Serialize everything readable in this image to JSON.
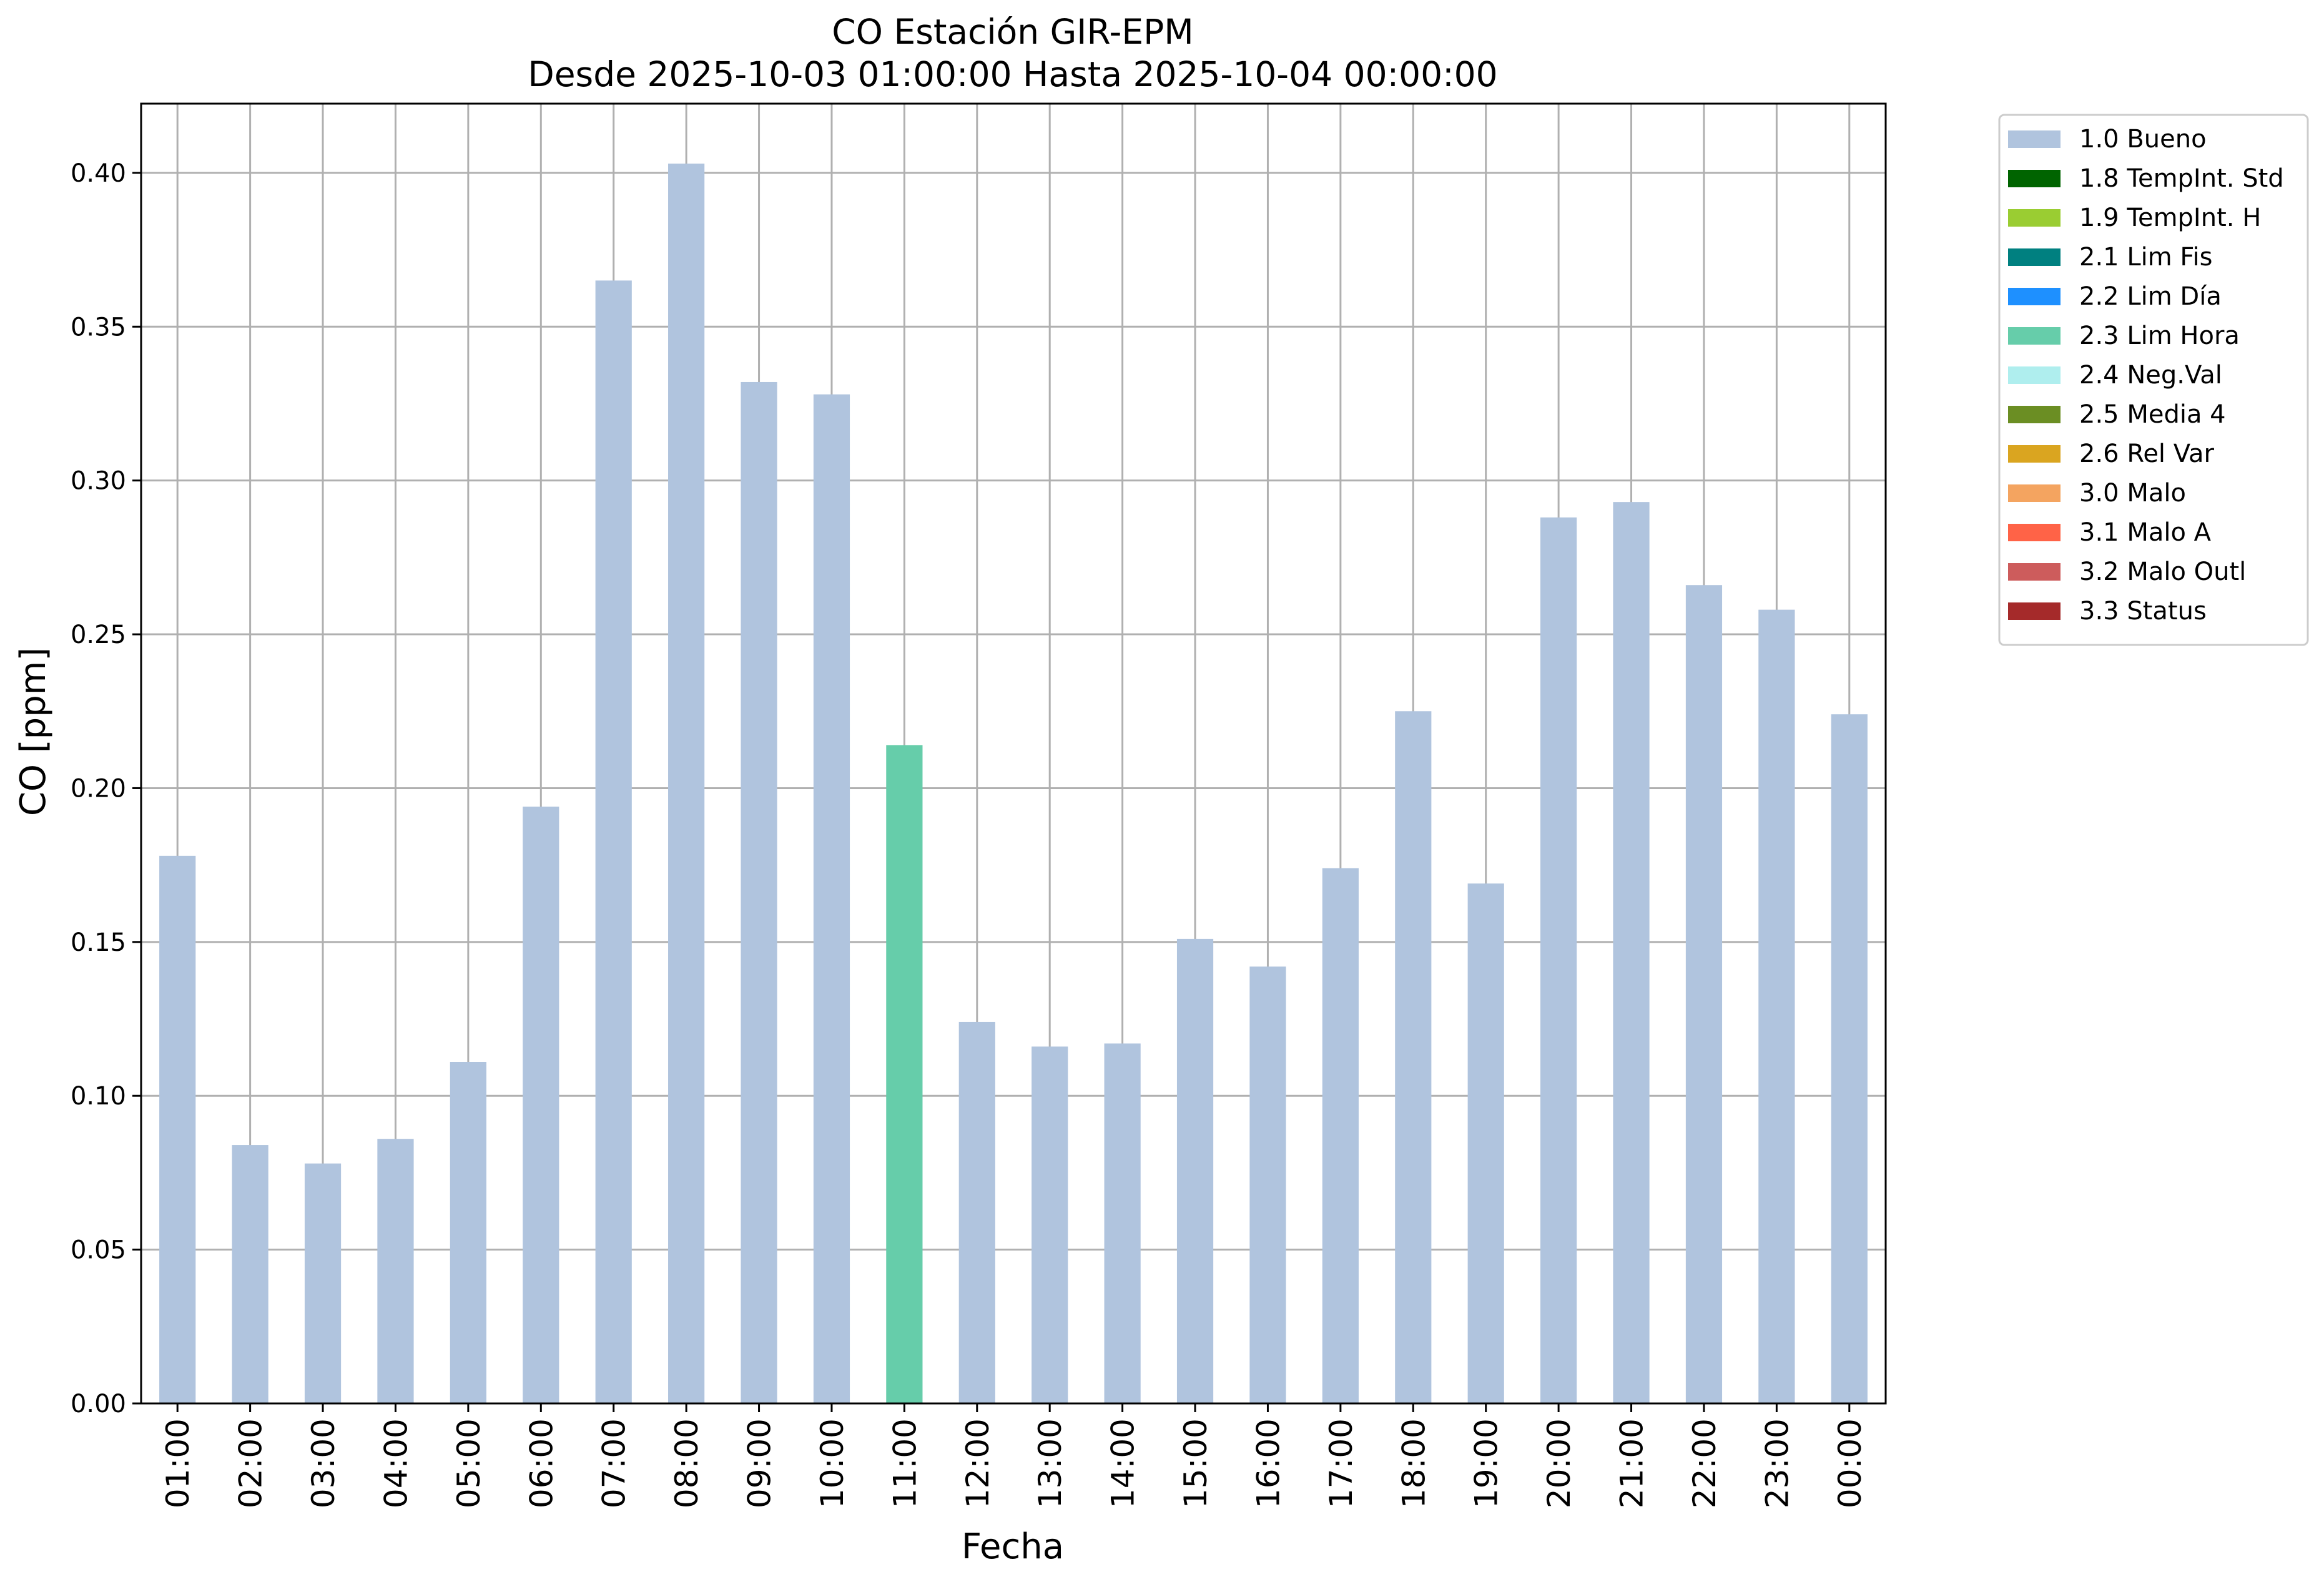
{
  "chart_data": {
    "type": "bar",
    "title": "CO Estación GIR-EPM",
    "subtitle": "Desde 2025-10-03 01:00:00 Hasta 2025-10-04 00:00:00",
    "xlabel": "Fecha",
    "ylabel": "CO [ppm]",
    "ylim": [
      0,
      0.4225
    ],
    "yticks": [
      "0.00",
      "0.05",
      "0.10",
      "0.15",
      "0.20",
      "0.25",
      "0.30",
      "0.35",
      "0.40"
    ],
    "grid": true,
    "legend_position": "outside-top-right",
    "categories": [
      "01:00",
      "02:00",
      "03:00",
      "04:00",
      "05:00",
      "06:00",
      "07:00",
      "08:00",
      "09:00",
      "10:00",
      "11:00",
      "12:00",
      "13:00",
      "14:00",
      "15:00",
      "16:00",
      "17:00",
      "18:00",
      "19:00",
      "20:00",
      "21:00",
      "22:00",
      "23:00",
      "00:00"
    ],
    "values": [
      0.178,
      0.084,
      0.078,
      0.086,
      0.111,
      0.194,
      0.365,
      0.403,
      0.332,
      0.328,
      0.214,
      0.124,
      0.116,
      0.117,
      0.151,
      0.142,
      0.174,
      0.225,
      0.169,
      0.288,
      0.293,
      0.266,
      0.258,
      0.224
    ],
    "flags": [
      "1.0 Bueno",
      "1.0 Bueno",
      "1.0 Bueno",
      "1.0 Bueno",
      "1.0 Bueno",
      "1.0 Bueno",
      "1.0 Bueno",
      "1.0 Bueno",
      "1.0 Bueno",
      "1.0 Bueno",
      "2.3 Lim Hora",
      "1.0 Bueno",
      "1.0 Bueno",
      "1.0 Bueno",
      "1.0 Bueno",
      "1.0 Bueno",
      "1.0 Bueno",
      "1.0 Bueno",
      "1.0 Bueno",
      "1.0 Bueno",
      "1.0 Bueno",
      "1.0 Bueno",
      "1.0 Bueno",
      "1.0 Bueno"
    ],
    "legend": [
      {
        "label": "1.0 Bueno",
        "color": "#b0c4de"
      },
      {
        "label": "1.8 TempInt. Std",
        "color": "#006400"
      },
      {
        "label": "1.9 TempInt. H",
        "color": "#9acd32"
      },
      {
        "label": "2.1 Lim Fis",
        "color": "#008080"
      },
      {
        "label": "2.2 Lim Día",
        "color": "#1e90ff"
      },
      {
        "label": "2.3 Lim Hora",
        "color": "#66cdaa"
      },
      {
        "label": "2.4 Neg.Val",
        "color": "#afeeee"
      },
      {
        "label": "2.5 Media 4",
        "color": "#6b8e23"
      },
      {
        "label": "2.6 Rel Var",
        "color": "#daa520"
      },
      {
        "label": "3.0 Malo",
        "color": "#f4a460"
      },
      {
        "label": "3.1 Malo A",
        "color": "#ff6347"
      },
      {
        "label": "3.2 Malo Outl",
        "color": "#cd5c5c"
      },
      {
        "label": "3.3 Status",
        "color": "#a52a2a"
      }
    ]
  }
}
